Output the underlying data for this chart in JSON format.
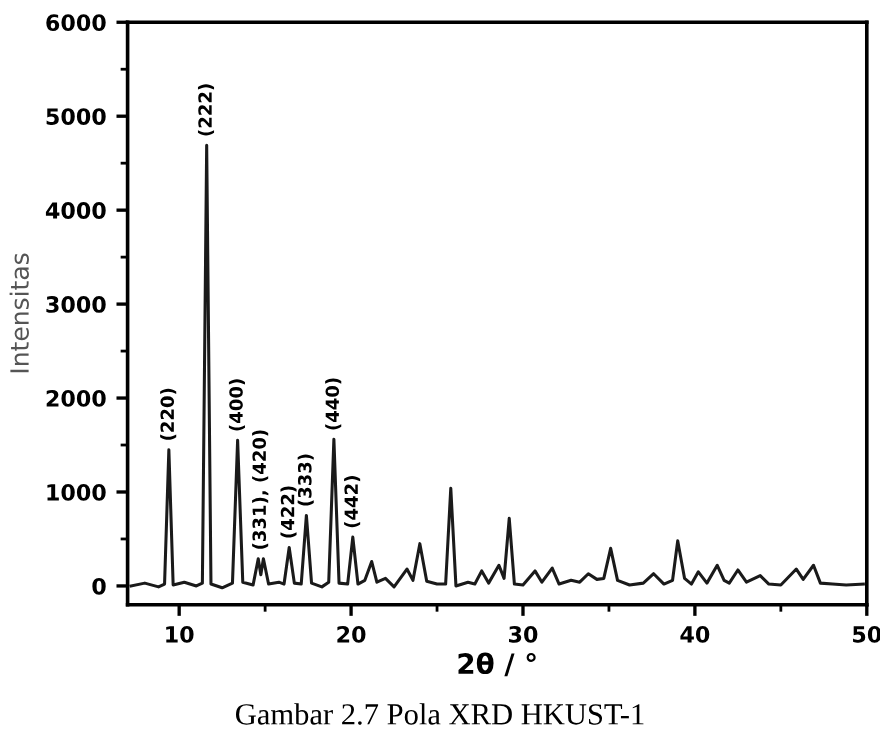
{
  "chart_data": {
    "type": "line",
    "xlabel": "2θ / °",
    "ylabel": "Intensitas",
    "x": [
      7.2,
      8.0,
      8.8,
      9.15,
      9.4,
      9.65,
      10.3,
      11.0,
      11.35,
      11.6,
      11.85,
      12.5,
      13.1,
      13.4,
      13.7,
      14.3,
      14.6,
      14.75,
      14.9,
      15.2,
      15.8,
      16.1,
      16.4,
      16.7,
      17.1,
      17.4,
      17.7,
      18.3,
      18.7,
      19.0,
      19.3,
      19.8,
      20.1,
      20.4,
      20.8,
      21.2,
      21.5,
      22.0,
      22.5,
      23.25,
      23.6,
      24.0,
      24.4,
      25.0,
      25.5,
      25.8,
      26.1,
      26.8,
      27.2,
      27.6,
      28.0,
      28.6,
      28.9,
      29.2,
      29.5,
      30.0,
      30.7,
      31.1,
      31.7,
      32.1,
      32.8,
      33.3,
      33.8,
      34.3,
      34.7,
      35.1,
      35.5,
      36.2,
      37.0,
      37.6,
      38.2,
      38.7,
      39.0,
      39.4,
      39.8,
      40.2,
      40.7,
      41.3,
      41.7,
      42.0,
      42.5,
      43.0,
      43.8,
      44.3,
      45.0,
      45.9,
      46.3,
      46.9,
      47.3,
      48.0,
      48.8,
      49.8
    ],
    "series": [
      {
        "color": "#1a1a1a",
        "values": [
          0,
          30,
          -10,
          20,
          1450,
          10,
          40,
          0,
          30,
          4690,
          20,
          -20,
          30,
          1550,
          40,
          10,
          290,
          120,
          290,
          20,
          40,
          20,
          410,
          30,
          20,
          750,
          30,
          -10,
          40,
          1560,
          30,
          20,
          520,
          20,
          60,
          260,
          40,
          80,
          -10,
          180,
          60,
          450,
          50,
          20,
          20,
          1040,
          0,
          40,
          20,
          160,
          30,
          220,
          80,
          720,
          20,
          10,
          160,
          40,
          190,
          20,
          60,
          40,
          130,
          70,
          80,
          400,
          60,
          10,
          30,
          130,
          20,
          60,
          480,
          80,
          20,
          150,
          30,
          220,
          60,
          30,
          170,
          40,
          110,
          20,
          10,
          180,
          70,
          220,
          30,
          20,
          10,
          20
        ]
      }
    ],
    "xlim": [
      7,
      50
    ],
    "ylim": [
      -200,
      6000
    ],
    "xticks": [
      10,
      {
        "value": 15,
        "label": null
      },
      20,
      {
        "value": 25,
        "label": null
      },
      30,
      {
        "value": 35,
        "label": null
      },
      40,
      {
        "value": 45,
        "label": null
      },
      50
    ],
    "yticks": [
      0,
      {
        "value": 500,
        "label": null
      },
      1000,
      {
        "value": 1500,
        "label": null
      },
      2000,
      {
        "value": 2500,
        "label": null
      },
      3000,
      {
        "value": 3500,
        "label": null
      },
      4000,
      {
        "value": 4500,
        "label": null
      },
      5000,
      {
        "value": 5500,
        "label": null
      },
      6000
    ],
    "line_style": "solid",
    "marker": "none",
    "grid": false,
    "legend": false,
    "annotations": [
      {
        "text": "(220)",
        "x": 9.4,
        "y": 1450
      },
      {
        "text": "(222)",
        "x": 11.6,
        "y": 4690
      },
      {
        "text": "(400)",
        "x": 13.4,
        "y": 1550
      },
      {
        "text": "(331), (420)",
        "x": 14.75,
        "y": 290
      },
      {
        "text": "(422)",
        "x": 16.4,
        "y": 410
      },
      {
        "text": "(333)",
        "x": 17.4,
        "y": 750
      },
      {
        "text": "(440)",
        "x": 19.0,
        "y": 1560
      },
      {
        "text": "(442)",
        "x": 20.1,
        "y": 520
      },
      "Gambar 2.7 Pola XRD HKUST-1"
    ]
  }
}
